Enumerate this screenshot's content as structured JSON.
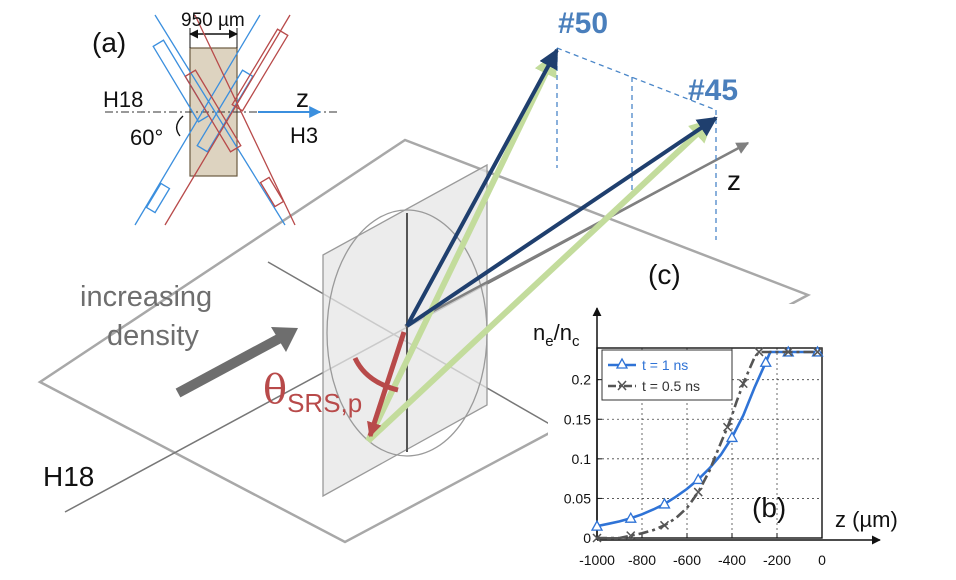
{
  "colors": {
    "navy": "#1f3f6e",
    "green": "#c3dc9c",
    "beam_blue": "#3b8fde",
    "beam_red": "#b84a4a",
    "label_blue": "#4a7fbc",
    "gray_arrow": "#6e6e6e",
    "plane": "#a8a8a8",
    "target": "#ddd3c0",
    "srs_red": "#b84a4a",
    "curve_1ns": "#2f73d6",
    "curve_05ns": "#555555"
  },
  "panel_a": {
    "label": "(a)",
    "width_label": "950 µm",
    "beam_left_label": "H18",
    "axis_label": "z",
    "beam_right_label": "H3",
    "angle_label": "60°"
  },
  "panel_c": {
    "label": "(c)",
    "beam_labels": [
      "#50",
      "#45"
    ],
    "z_label": "z",
    "density_text": [
      "increasing",
      "density"
    ],
    "h18_label": "H18",
    "theta_main": "θ",
    "theta_sub": "SRS,p"
  },
  "panel_b": {
    "label": "(b)",
    "y_label_main": "n",
    "y_label_sub1": "e",
    "y_label_sep": "/n",
    "y_label_sub2": "c",
    "x_label": "z (µm)",
    "x_ticks": [
      "-1000",
      "-800",
      "-600",
      "-400",
      "-200",
      "0"
    ],
    "y_ticks": [
      "0",
      "0.05",
      "0.1",
      "0.15",
      "0.2"
    ],
    "legend": [
      "t = 1 ns",
      "t = 0.5 ns"
    ]
  },
  "chart_data": {
    "type": "line",
    "title": "",
    "xlabel": "z (µm)",
    "ylabel": "n_e/n_c",
    "xlim": [
      -1000,
      0
    ],
    "ylim": [
      0,
      0.24
    ],
    "legend_position": "top-left",
    "series": [
      {
        "name": "t = 1 ns",
        "marker": "triangle",
        "x": [
          -1000,
          -950,
          -900,
          -850,
          -800,
          -750,
          -700,
          -650,
          -600,
          -550,
          -500,
          -450,
          -400,
          -350,
          -300,
          -250,
          -230,
          -200,
          -150,
          -100,
          -50,
          -20
        ],
        "y": [
          0.015,
          0.018,
          0.021,
          0.025,
          0.03,
          0.036,
          0.043,
          0.052,
          0.062,
          0.074,
          0.088,
          0.105,
          0.127,
          0.155,
          0.19,
          0.222,
          0.235,
          0.235,
          0.235,
          0.235,
          0.235,
          0.235
        ]
      },
      {
        "name": "t = 0.5 ns",
        "marker": "x",
        "x": [
          -1000,
          -950,
          -900,
          -850,
          -800,
          -750,
          -700,
          -650,
          -600,
          -550,
          -500,
          -450,
          -420,
          -400,
          -380,
          -350,
          -320,
          -300,
          -280,
          -250,
          -200,
          -150,
          -100,
          -50,
          -20
        ],
        "y": [
          0,
          0,
          0,
          0.003,
          0.006,
          0.01,
          0.016,
          0.025,
          0.038,
          0.058,
          0.085,
          0.12,
          0.14,
          0.155,
          0.172,
          0.195,
          0.215,
          0.228,
          0.235,
          0.235,
          0.235,
          0.235,
          0.235,
          0.235,
          0.235
        ]
      }
    ]
  }
}
